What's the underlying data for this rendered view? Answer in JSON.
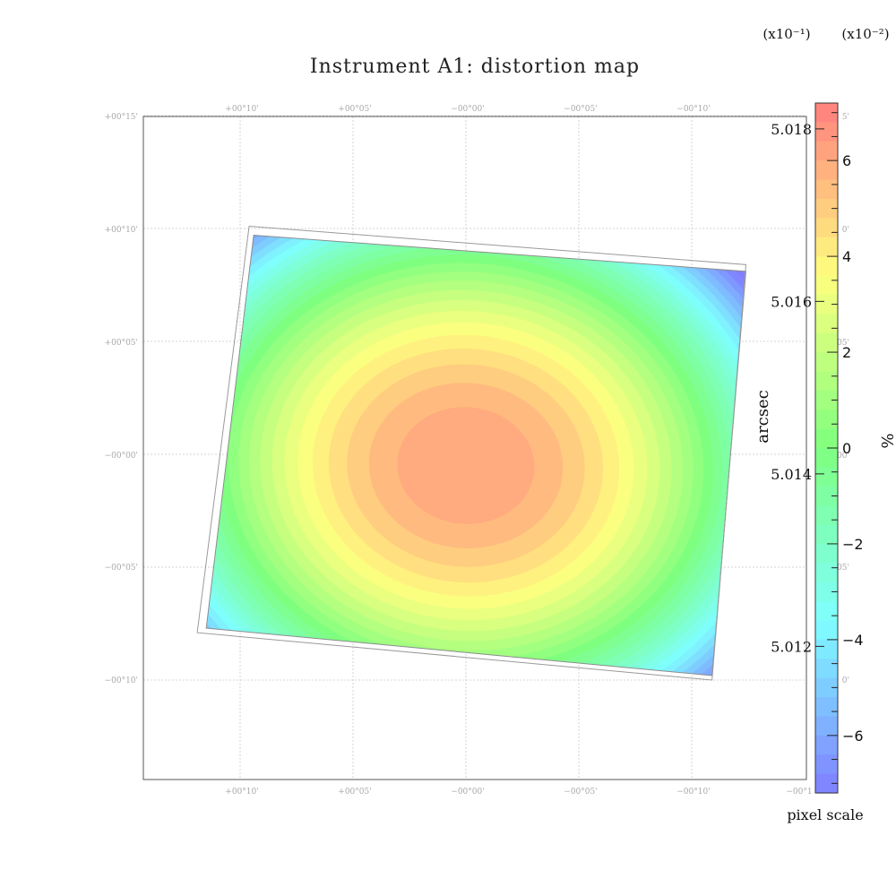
{
  "chart_data": {
    "type": "heatmap",
    "title": "Instrument A1: distortion map",
    "x_ticks": [
      "+00°10'",
      "+00°05'",
      "−00°00'",
      "−00°05'",
      "−00°10'",
      "−00°1"
    ],
    "y_ticks": [
      "+00°15'",
      "+00°10'",
      "+00°05'",
      "−00°00'",
      "−00°05'",
      "−00°10'"
    ],
    "right_ghost_ticks": [
      "5'",
      "0'",
      "05'",
      "00'",
      "05'",
      "0'"
    ],
    "grid": true,
    "grid_angles_arcmin": [
      10,
      5,
      0,
      -5,
      -10
    ],
    "field_corners_arcmin": [
      [
        9.4,
        9.7
      ],
      [
        -12.4,
        8.1
      ],
      [
        -10.9,
        -9.8
      ],
      [
        11.5,
        -7.7
      ]
    ],
    "distortion": {
      "center_arcmin": [
        0,
        -0.5
      ],
      "peak_percent": 6.5,
      "edge_percent": -6.5,
      "contour_step_percent": 0.5
    },
    "colorbar_percent": {
      "label": "%",
      "multiplier": "(x10⁻¹)",
      "range": [
        -7.2,
        7.2
      ],
      "ticks": [
        "6",
        "4",
        "2",
        "0",
        "−2",
        "−4",
        "−6"
      ],
      "tick_values": [
        6,
        4,
        2,
        0,
        -2,
        -4,
        -6
      ]
    },
    "colorbar_pixel_scale": {
      "label": "pixel scale",
      "axis_unit": "arcsec",
      "multiplier": "(x10⁻²)",
      "range": [
        5.0103,
        5.0183
      ],
      "ticks": [
        "5.018",
        "5.016",
        "5.014",
        "5.012"
      ],
      "tick_values": [
        5.018,
        5.016,
        5.014,
        5.012
      ]
    },
    "colors": [
      "#7f7fff",
      "#7fffff",
      "#7fff7f",
      "#ffff7f",
      "#ff7f7f"
    ]
  }
}
